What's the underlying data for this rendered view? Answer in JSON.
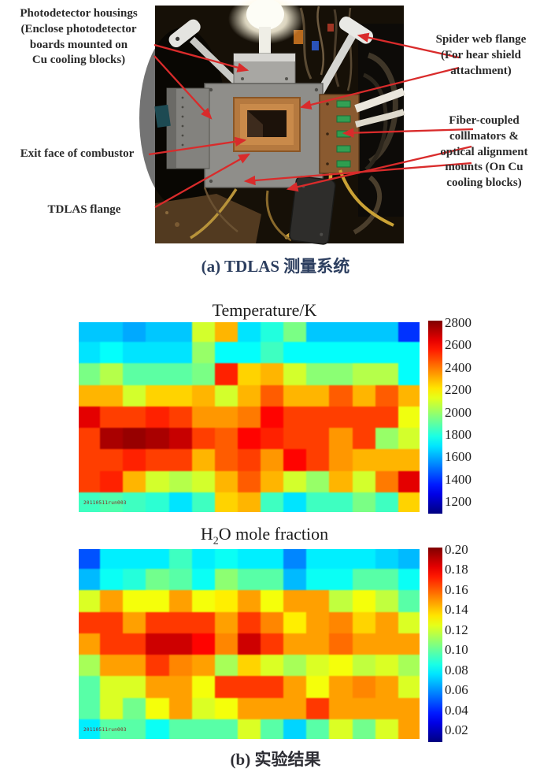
{
  "panel_a": {
    "caption": "(a) TDLAS 测量系统",
    "annotations": [
      {
        "id": "photodetector-housings",
        "text": "Photodetector housings\n(Enclose photodetector\nboards mounted on\nCu cooling blocks)"
      },
      {
        "id": "exit-face-of-combustor",
        "text": "Exit face of combustor"
      },
      {
        "id": "tdlas-flange",
        "text": "TDLAS flange"
      },
      {
        "id": "spider-web-flange",
        "text": "Spider web flange\n(For hear shield\nattachment)"
      },
      {
        "id": "fiber-coupled-collimators",
        "text": "Fiber-coupled\ncolllmators &\noptical alignment\nmounts (On Cu\ncooling blocks)"
      }
    ],
    "arrow_color": "#d92b2b"
  },
  "panel_b": {
    "caption": "(b) 实验结果"
  },
  "chart_data": [
    {
      "type": "heatmap",
      "title": "Temperature/K",
      "colormap": "jet",
      "vmin": 1100,
      "vmax": 2820,
      "colorbar_ticks": [
        "2800",
        "2600",
        "2400",
        "2200",
        "2000",
        "1800",
        "1600",
        "1400",
        "1200"
      ],
      "watermark": "20110511run003",
      "grid": [
        [
          1650,
          1650,
          1600,
          1650,
          1650,
          2100,
          2300,
          1700,
          1800,
          1950,
          1650,
          1650,
          1650,
          1650,
          1400
        ],
        [
          1700,
          1750,
          1700,
          1700,
          1700,
          2000,
          1750,
          1750,
          1850,
          1750,
          1750,
          1750,
          1750,
          1750,
          1750
        ],
        [
          1950,
          2050,
          1900,
          1900,
          1900,
          1950,
          2550,
          2250,
          2300,
          2100,
          1980,
          1980,
          2050,
          2050,
          1750
        ],
        [
          2300,
          2300,
          2100,
          2250,
          2250,
          2300,
          2100,
          2300,
          2450,
          2300,
          2300,
          2450,
          2300,
          2450,
          2300
        ],
        [
          2650,
          2500,
          2500,
          2550,
          2500,
          2350,
          2350,
          2400,
          2600,
          2500,
          2500,
          2500,
          2500,
          2500,
          2150
        ],
        [
          2500,
          2750,
          2780,
          2750,
          2700,
          2500,
          2450,
          2600,
          2550,
          2500,
          2500,
          2350,
          2500,
          2000,
          2100
        ],
        [
          2500,
          2500,
          2550,
          2500,
          2500,
          2300,
          2450,
          2500,
          2350,
          2600,
          2500,
          2350,
          2300,
          2300,
          2300
        ],
        [
          2500,
          2550,
          2300,
          2100,
          2050,
          2100,
          2300,
          2450,
          2300,
          2100,
          2000,
          2300,
          2100,
          2400,
          2650
        ],
        [
          1850,
          1880,
          1850,
          1820,
          1700,
          1850,
          2250,
          2300,
          1850,
          1700,
          1850,
          1850,
          1950,
          1850,
          2250
        ]
      ]
    },
    {
      "type": "heatmap",
      "title": "H2O mole fraction",
      "title_parts": {
        "pre": "H",
        "sub": "2",
        "post": "O mole fraction"
      },
      "colormap": "jet",
      "vmin": 0.01,
      "vmax": 0.205,
      "colorbar_ticks": [
        "0.20",
        "0.18",
        "0.16",
        "0.14",
        "0.12",
        "0.10",
        "0.08",
        "0.06",
        "0.04",
        "0.02"
      ],
      "watermark": "20110511run003",
      "grid": [
        [
          0.05,
          0.08,
          0.08,
          0.08,
          0.095,
          0.08,
          0.085,
          0.08,
          0.08,
          0.06,
          0.08,
          0.08,
          0.08,
          0.075,
          0.07
        ],
        [
          0.07,
          0.085,
          0.09,
          0.105,
          0.1,
          0.085,
          0.11,
          0.1,
          0.1,
          0.07,
          0.085,
          0.085,
          0.1,
          0.1,
          0.085
        ],
        [
          0.125,
          0.15,
          0.13,
          0.13,
          0.15,
          0.13,
          0.135,
          0.15,
          0.13,
          0.15,
          0.15,
          0.12,
          0.13,
          0.12,
          0.1
        ],
        [
          0.17,
          0.17,
          0.15,
          0.17,
          0.17,
          0.17,
          0.15,
          0.17,
          0.155,
          0.135,
          0.15,
          0.155,
          0.14,
          0.15,
          0.125
        ],
        [
          0.15,
          0.17,
          0.17,
          0.19,
          0.19,
          0.18,
          0.155,
          0.19,
          0.17,
          0.15,
          0.15,
          0.16,
          0.15,
          0.15,
          0.15
        ],
        [
          0.115,
          0.15,
          0.15,
          0.17,
          0.155,
          0.15,
          0.115,
          0.14,
          0.125,
          0.115,
          0.125,
          0.13,
          0.12,
          0.125,
          0.115
        ],
        [
          0.1,
          0.125,
          0.125,
          0.15,
          0.15,
          0.13,
          0.17,
          0.17,
          0.17,
          0.15,
          0.13,
          0.15,
          0.155,
          0.15,
          0.125
        ],
        [
          0.1,
          0.125,
          0.105,
          0.13,
          0.15,
          0.125,
          0.13,
          0.15,
          0.15,
          0.15,
          0.17,
          0.15,
          0.15,
          0.15,
          0.15
        ],
        [
          0.08,
          0.1,
          0.1,
          0.085,
          0.1,
          0.1,
          0.1,
          0.125,
          0.1,
          0.075,
          0.1,
          0.125,
          0.105,
          0.125,
          0.15
        ]
      ]
    }
  ]
}
